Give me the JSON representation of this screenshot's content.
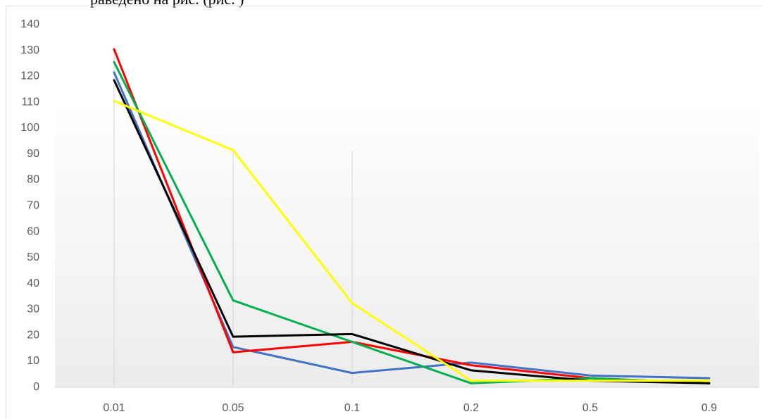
{
  "caption_fragment": "раведено на рис. (рис. )",
  "chart_data": {
    "type": "line",
    "categories": [
      "0.01",
      "0.05",
      "0.1",
      "0.2",
      "0.5",
      "0.9"
    ],
    "ylim": [
      0,
      140
    ],
    "yticks": [
      0,
      10,
      20,
      30,
      40,
      50,
      60,
      70,
      80,
      90,
      100,
      110,
      120,
      130,
      140
    ],
    "title": "",
    "xlabel": "",
    "ylabel": "",
    "grid": "vertical lines at first three categories",
    "legend": "none",
    "series": [
      {
        "color": "#4472c4",
        "values": [
          121,
          15,
          5,
          9,
          4,
          3
        ]
      },
      {
        "color": "#ff0000",
        "values": [
          130,
          13,
          17,
          8,
          3,
          1
        ]
      },
      {
        "color": "#00b050",
        "values": [
          125,
          33,
          17,
          1,
          3,
          1
        ]
      },
      {
        "color": "#000000",
        "values": [
          118,
          19,
          20,
          6,
          2,
          1
        ]
      },
      {
        "color": "#ffff00",
        "values": [
          110,
          91,
          32,
          2,
          2,
          2
        ]
      }
    ]
  }
}
